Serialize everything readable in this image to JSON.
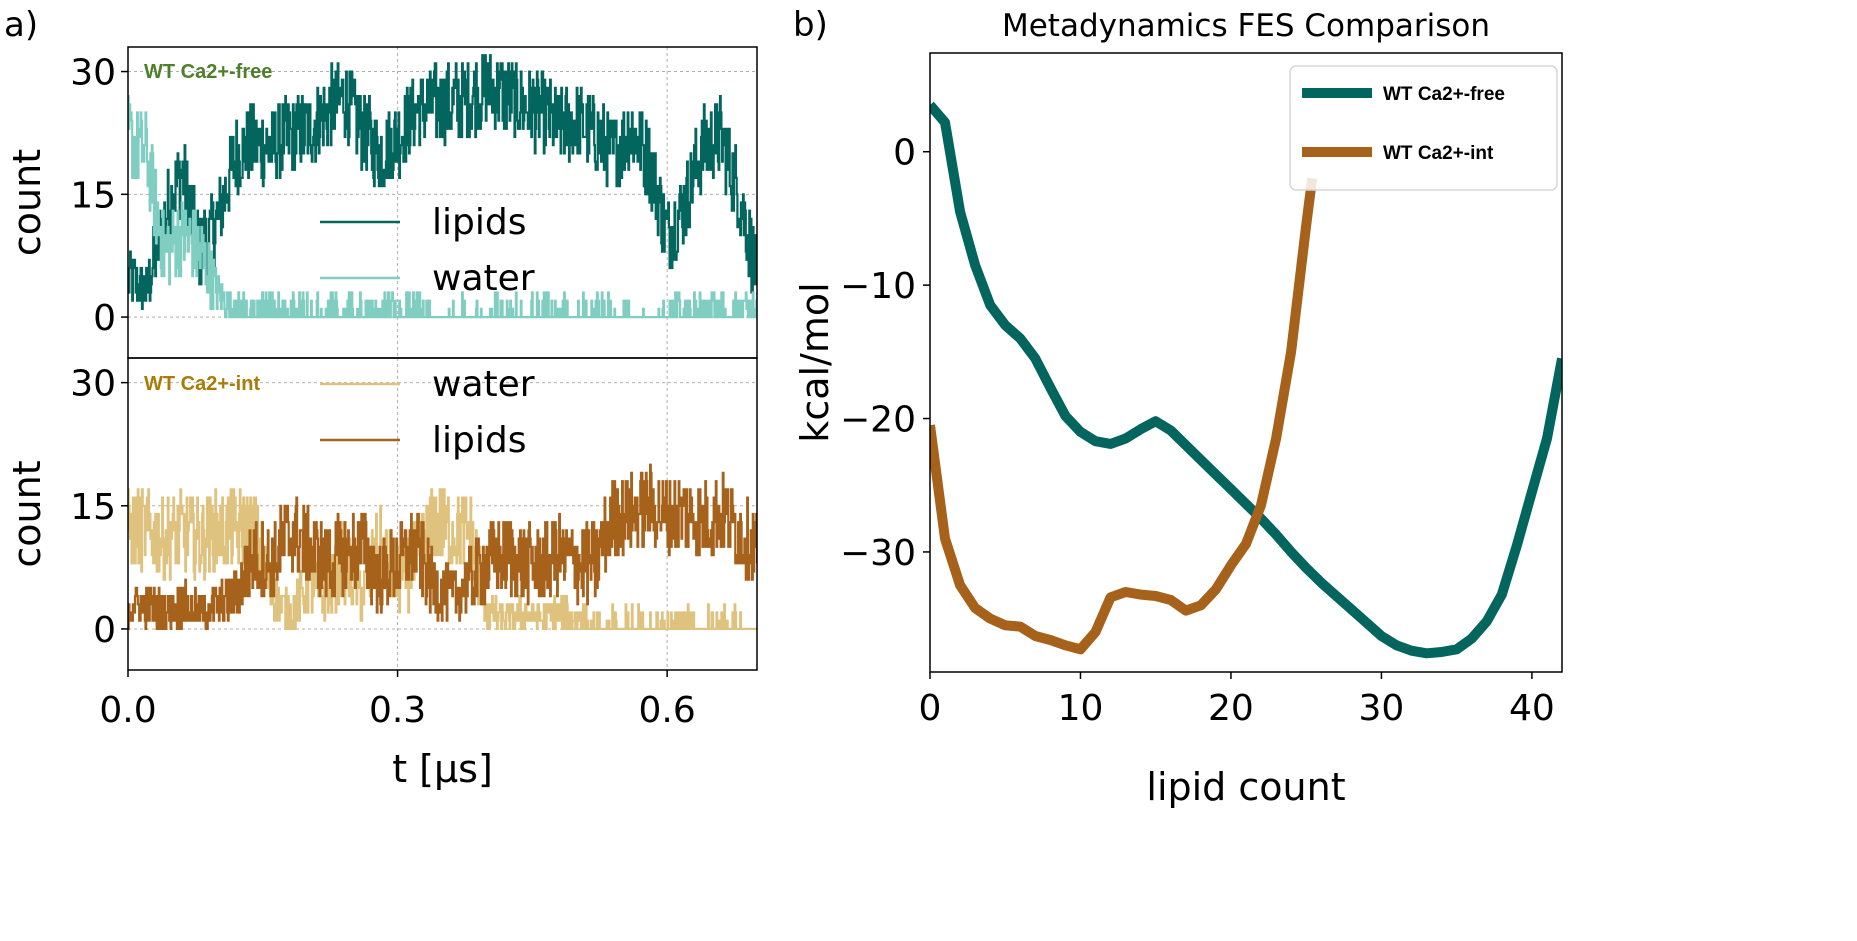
{
  "panel_labels": {
    "a": "a)",
    "b": "b)"
  },
  "colors": {
    "free_lipids": "#03665e",
    "free_water": "#80cdc1",
    "int_water": "#dfc27d",
    "int_lipids": "#a6611a",
    "free_tag": "#4e7f2a",
    "int_tag": "#a97c05"
  },
  "chart_data": [
    {
      "type": "line",
      "panel": "a-top",
      "tag": "WT Ca2+-free",
      "ylabel": "count",
      "xlim": [
        0,
        0.7
      ],
      "ylim": [
        -5,
        33
      ],
      "yticks": [
        0,
        15,
        30
      ],
      "xticks": [
        0.0,
        0.3,
        0.6
      ],
      "grid": true,
      "legend_placement": "center",
      "x": [
        0,
        0.02,
        0.04,
        0.06,
        0.08,
        0.1,
        0.12,
        0.14,
        0.16,
        0.18,
        0.2,
        0.22,
        0.24,
        0.26,
        0.28,
        0.3,
        0.32,
        0.34,
        0.36,
        0.38,
        0.4,
        0.42,
        0.44,
        0.46,
        0.48,
        0.5,
        0.52,
        0.54,
        0.56,
        0.58,
        0.6,
        0.62,
        0.64,
        0.66,
        0.68,
        0.7
      ],
      "series": [
        {
          "name": "lipids",
          "values": [
            5,
            3,
            12,
            18,
            8,
            12,
            20,
            21,
            21,
            22,
            23,
            25,
            27,
            23,
            20,
            22,
            25,
            26,
            26,
            27,
            28,
            27,
            26,
            25,
            23,
            24,
            22,
            20,
            23,
            19,
            10,
            14,
            21,
            22,
            15,
            5
          ]
        },
        {
          "name": "water",
          "values": [
            22,
            20,
            8,
            10,
            8,
            3,
            0.5,
            0.5,
            0.5,
            0.4,
            0.3,
            0.3,
            0.3,
            0.5,
            0.5,
            0.5,
            0.5,
            0.3,
            0.2,
            0.2,
            0.2,
            0.2,
            0.2,
            0.2,
            0.2,
            0.2,
            0.2,
            0.2,
            0.2,
            0.2,
            0.5,
            0.5,
            0.5,
            0.5,
            0.5,
            0.5
          ]
        }
      ]
    },
    {
      "type": "line",
      "panel": "a-bottom",
      "tag": "WT Ca2+-int",
      "xlabel": "t [μs]",
      "ylabel": "count",
      "xlim": [
        0,
        0.7
      ],
      "ylim": [
        -5,
        33
      ],
      "yticks": [
        0,
        15,
        30
      ],
      "xticks": [
        0.0,
        0.3,
        0.6
      ],
      "xticklabels": [
        "0.0",
        "0.3",
        "0.6"
      ],
      "grid": true,
      "legend_placement": "top-center",
      "x": [
        0,
        0.02,
        0.04,
        0.06,
        0.08,
        0.1,
        0.12,
        0.14,
        0.16,
        0.18,
        0.2,
        0.22,
        0.24,
        0.26,
        0.28,
        0.3,
        0.32,
        0.34,
        0.36,
        0.38,
        0.4,
        0.42,
        0.44,
        0.46,
        0.48,
        0.5,
        0.52,
        0.54,
        0.56,
        0.58,
        0.6,
        0.62,
        0.64,
        0.66,
        0.68,
        0.7
      ],
      "series": [
        {
          "name": "water",
          "values": [
            12,
            12,
            11,
            12,
            11,
            12,
            12,
            12,
            4,
            2,
            5,
            4,
            8,
            4,
            10,
            6,
            8,
            13,
            12,
            12,
            2,
            1,
            2,
            1,
            2,
            1,
            0.5,
            0.3,
            0.3,
            0.3,
            0.3,
            0.3,
            0.3,
            0.3,
            0.3,
            0.3
          ]
        },
        {
          "name": "lipids",
          "values": [
            3,
            3,
            2,
            3,
            2,
            3,
            4,
            9,
            8,
            12,
            10,
            8,
            9,
            10,
            6,
            8,
            10,
            5,
            4,
            6,
            8,
            9,
            8,
            8,
            9,
            8,
            8,
            14,
            14,
            15,
            14,
            14,
            13,
            14,
            12,
            10
          ]
        }
      ]
    },
    {
      "type": "line",
      "panel": "b",
      "title": "Metadynamics FES Comparison",
      "xlabel": "lipid count",
      "ylabel": "kcal/mol",
      "xlim": [
        0,
        42
      ],
      "ylim": [
        -39,
        7.4
      ],
      "xticks": [
        0,
        10,
        20,
        30,
        40
      ],
      "yticks": [
        0,
        -10,
        -20,
        -30
      ],
      "yticklabels": [
        "0",
        "−10",
        "−20",
        "−30"
      ],
      "grid": false,
      "legend_placement": "upper-right",
      "series": [
        {
          "name": "WT Ca2+-free",
          "x": [
            0,
            1,
            2,
            3,
            4,
            5,
            6,
            7,
            8,
            9,
            10,
            11,
            12,
            13,
            14,
            15,
            16,
            17,
            18,
            19,
            20,
            21,
            22,
            23,
            24,
            25,
            26,
            27,
            28,
            29,
            30,
            31,
            32,
            33,
            34,
            35,
            36,
            37,
            38,
            39,
            40,
            41,
            42
          ],
          "values": [
            3.5,
            2.2,
            -4.5,
            -8.5,
            -11.5,
            -13,
            -14,
            -15.5,
            -17.7,
            -19.8,
            -21,
            -21.7,
            -21.9,
            -21.5,
            -20.8,
            -20.2,
            -20.9,
            -22,
            -23.1,
            -24.2,
            -25.3,
            -26.4,
            -27.5,
            -28.7,
            -30,
            -31.2,
            -32.3,
            -33.3,
            -34.3,
            -35.3,
            -36.3,
            -37,
            -37.4,
            -37.6,
            -37.5,
            -37.3,
            -36.5,
            -35.2,
            -33.2,
            -29.5,
            -25.5,
            -21.5,
            -15.5
          ]
        },
        {
          "name": "WT Ca2+-int",
          "x": [
            0,
            1,
            2,
            3,
            4,
            5,
            6,
            7,
            8,
            9,
            10,
            11,
            12,
            13,
            14,
            15,
            16,
            17,
            18,
            19,
            20,
            21,
            22,
            23,
            24,
            25,
            25.4
          ],
          "values": [
            -20.5,
            -29,
            -32.5,
            -34.2,
            -35,
            -35.5,
            -35.6,
            -36.3,
            -36.6,
            -37,
            -37.3,
            -36,
            -33.4,
            -33,
            -33.2,
            -33.3,
            -33.6,
            -34.4,
            -34,
            -32.8,
            -31,
            -29.4,
            -26.5,
            -21.5,
            -15,
            -5.5,
            -2
          ]
        }
      ]
    }
  ]
}
